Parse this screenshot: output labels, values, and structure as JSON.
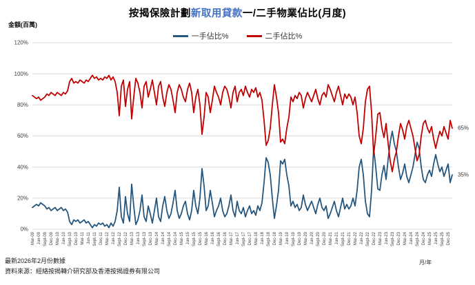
{
  "title": {
    "prefix": "按揭保險計劃",
    "highlight": "新取用貸款",
    "suffix": "一/二手物業佔比(月度)"
  },
  "y_axis_unit_label": "金額(百萬)",
  "x_axis_unit_label": "月/年",
  "footer": {
    "latest_note": "最新2026年2月份數據",
    "source": "資料來源：經絡按揭轉介研究部及香港按揭證券有限公司"
  },
  "colors": {
    "first_hand": "#24567E",
    "second_hand": "#C00000",
    "highlight_text": "#4472C4",
    "grid": "#DCDCDC",
    "axis_text": "#404040"
  },
  "chart_data": {
    "type": "line",
    "title": "按揭保險計劃新取用貸款一/二手物業佔比(月度)",
    "xlabel": "月/年",
    "ylabel": "%",
    "ylim": [
      0,
      120
    ],
    "grid": "horizontal",
    "legend_position": "top",
    "x_frequency": "monthly from Mar-2009 to Feb-2026",
    "y_tick_labels": [
      "0%",
      "20%",
      "40%",
      "60%",
      "80%",
      "100%",
      "120%"
    ],
    "x_tick_labels": [
      "Mar-09",
      "Jun-09",
      "Sept-09",
      "Dec-09",
      "Mar-10",
      "Jun-10",
      "Sept-10",
      "Dec-10",
      "Mar-11",
      "Jun-11",
      "Sept-11",
      "Dec-11",
      "Mar-12",
      "Jun-12",
      "Sept-12",
      "Dec-12",
      "Mar-13",
      "Jun-13",
      "Sept-13",
      "Dec-13",
      "Mar-14",
      "Jun-14",
      "Sept-14",
      "Dec-14",
      "Mar-15",
      "Jun-15",
      "Sept-15",
      "Dec-15",
      "Mar-16",
      "Jun-16",
      "Sept-16",
      "Dec-16",
      "Mar-17",
      "Jun-17",
      "Sept-17",
      "Dec-17",
      "Mar-18",
      "Jun-18",
      "Sept-18",
      "Dec-18",
      "Mar-19",
      "Jun-19",
      "Sept-19",
      "Dec-19",
      "Mar-20",
      "Jun-20",
      "Sept-20",
      "Dec-20",
      "Mar-21",
      "Jun-21",
      "Sept-21",
      "Dec-21",
      "Mar-22",
      "Jun-22",
      "Sept-22",
      "Dec-22",
      "Mar-23",
      "Jun-23",
      "Sept-23",
      "Dec-23",
      "Mar-24",
      "Jun-24",
      "Sept-24",
      "Dec-24",
      "Mar-25",
      "Jun-25",
      "Sept-25",
      "Dec-25"
    ],
    "series": [
      {
        "name": "一手佔比%",
        "key": "first_hand",
        "color": "#24567E",
        "end_label": "35%",
        "values": [
          14,
          15,
          16,
          15,
          17,
          16,
          15,
          13,
          14,
          12,
          13,
          14,
          12,
          13,
          14,
          12,
          13,
          11,
          5,
          3,
          6,
          5,
          6,
          4,
          5,
          6,
          4,
          5,
          3,
          1,
          3,
          2,
          4,
          3,
          4,
          2,
          3,
          1,
          4,
          2,
          5,
          12,
          27,
          8,
          4,
          21,
          10,
          5,
          29,
          15,
          3,
          6,
          12,
          22,
          8,
          5,
          15,
          10,
          4,
          12,
          20,
          8,
          5,
          15,
          21,
          12,
          7,
          10,
          17,
          25,
          12,
          7,
          10,
          15,
          18,
          10,
          6,
          12,
          25,
          15,
          10,
          20,
          39,
          28,
          12,
          15,
          25,
          17,
          8,
          12,
          15,
          20,
          12,
          8,
          10,
          15,
          22,
          12,
          8,
          18,
          12,
          10,
          14,
          8,
          12,
          15,
          10,
          12,
          9,
          15,
          12,
          17,
          30,
          46,
          43,
          35,
          20,
          7,
          15,
          25,
          44,
          42,
          45,
          35,
          28,
          15,
          18,
          14,
          16,
          12,
          14,
          22,
          16,
          12,
          15,
          18,
          14,
          10,
          16,
          20,
          14,
          12,
          15,
          7,
          10,
          14,
          18,
          12,
          8,
          14,
          20,
          13,
          16,
          13,
          15,
          20,
          15,
          25,
          40,
          45,
          35,
          18,
          10,
          8,
          25,
          52,
          40,
          26,
          25,
          35,
          41,
          32,
          45,
          56,
          63,
          55,
          50,
          40,
          32,
          36,
          42,
          34,
          30,
          35,
          40,
          48,
          56,
          52,
          40,
          32,
          30,
          35,
          38,
          34,
          42,
          48,
          42,
          37,
          40,
          34,
          38,
          42,
          30,
          35
        ]
      },
      {
        "name": "二手佔比%",
        "key": "second_hand",
        "color": "#C00000",
        "end_label": "65%",
        "values": [
          86,
          85,
          84,
          85,
          83,
          84,
          85,
          87,
          86,
          88,
          87,
          86,
          88,
          87,
          86,
          88,
          87,
          89,
          95,
          97,
          94,
          95,
          94,
          96,
          95,
          94,
          96,
          95,
          97,
          99,
          97,
          98,
          96,
          97,
          96,
          98,
          97,
          99,
          96,
          98,
          95,
          88,
          73,
          92,
          96,
          79,
          90,
          95,
          71,
          85,
          97,
          94,
          88,
          78,
          92,
          95,
          85,
          90,
          96,
          88,
          80,
          92,
          95,
          85,
          79,
          88,
          93,
          90,
          83,
          75,
          88,
          93,
          90,
          85,
          82,
          90,
          94,
          88,
          75,
          85,
          90,
          80,
          61,
          72,
          88,
          85,
          75,
          83,
          92,
          88,
          85,
          80,
          88,
          92,
          90,
          85,
          78,
          88,
          92,
          82,
          88,
          90,
          86,
          92,
          88,
          85,
          90,
          88,
          91,
          85,
          88,
          83,
          70,
          54,
          57,
          65,
          80,
          93,
          85,
          75,
          56,
          58,
          55,
          65,
          72,
          85,
          82,
          86,
          84,
          88,
          86,
          78,
          84,
          88,
          85,
          82,
          86,
          90,
          84,
          80,
          86,
          88,
          85,
          93,
          90,
          86,
          82,
          88,
          92,
          86,
          80,
          87,
          84,
          87,
          85,
          80,
          85,
          75,
          60,
          55,
          65,
          82,
          90,
          92,
          75,
          48,
          60,
          74,
          75,
          65,
          59,
          68,
          55,
          44,
          37,
          45,
          50,
          60,
          68,
          64,
          58,
          66,
          70,
          65,
          60,
          52,
          44,
          48,
          60,
          68,
          70,
          65,
          62,
          66,
          58,
          52,
          58,
          63,
          60,
          66,
          62,
          58,
          70,
          65
        ]
      }
    ]
  }
}
